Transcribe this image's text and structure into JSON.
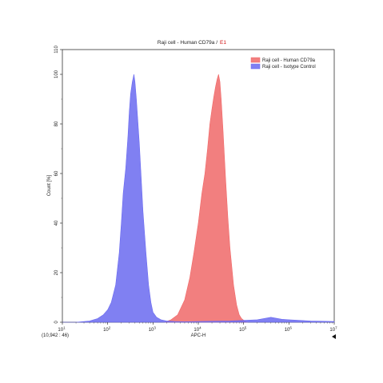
{
  "chart_data": {
    "type": "area",
    "title_main": "Raji cell - Human CD79a /",
    "title_suffix": "E1",
    "xlabel": "APC-H",
    "ylabel": "Count [%]",
    "x_scale": "log",
    "xlim": [
      10,
      10000000
    ],
    "ylim": [
      0,
      110
    ],
    "x_ticks": [
      {
        "base": "10",
        "exp": "1"
      },
      {
        "base": "10",
        "exp": "2"
      },
      {
        "base": "10",
        "exp": "3"
      },
      {
        "base": "10",
        "exp": "4"
      },
      {
        "base": "10",
        "exp": "5"
      },
      {
        "base": "10",
        "exp": "6"
      },
      {
        "base": "10",
        "exp": "7"
      }
    ],
    "y_ticks": [
      "0",
      "20",
      "40",
      "60",
      "80",
      "100",
      "110"
    ],
    "y_tick_values": [
      0,
      20,
      40,
      60,
      80,
      100,
      110
    ],
    "legend_position": "top-right",
    "readout": "(10,942 : 46)",
    "series": [
      {
        "name": "Raji cell - Human CD79a",
        "color": "#f06868",
        "fill_opacity": 0.85,
        "x": [
          1800,
          2500,
          3500,
          5000,
          6500,
          8000,
          10000,
          12000,
          14000,
          16000,
          18000,
          20000,
          22000,
          24000,
          26000,
          28000,
          30000,
          32000,
          35000,
          40000,
          45000,
          50000,
          60000,
          70000,
          80000,
          90000,
          100000,
          120000
        ],
        "y": [
          0,
          1,
          3,
          9,
          18,
          28,
          40,
          52,
          60,
          70,
          80,
          86,
          91,
          95,
          98,
          100,
          97,
          90,
          78,
          58,
          42,
          30,
          15,
          7,
          3,
          1.5,
          0.8,
          0
        ]
      },
      {
        "name": "Raji cell - Isotype Control",
        "color": "#6a6af0",
        "fill_opacity": 0.85,
        "x": [
          10,
          20,
          40,
          60,
          80,
          100,
          120,
          150,
          180,
          200,
          220,
          250,
          280,
          300,
          320,
          350,
          380,
          400,
          430,
          460,
          500,
          550,
          600,
          700,
          800,
          900,
          1000,
          1200,
          1500,
          2000,
          3000,
          5000,
          10000,
          50000,
          200000,
          400000,
          700000,
          1000000,
          3000000,
          10000000
        ],
        "y": [
          0,
          0,
          0.5,
          1.5,
          3,
          5,
          8,
          15,
          28,
          40,
          52,
          62,
          75,
          85,
          92,
          97,
          100,
          97,
          90,
          82,
          72,
          58,
          45,
          28,
          15,
          8,
          4,
          2,
          1,
          0.5,
          0.3,
          0.2,
          0.3,
          0.5,
          1,
          2,
          1.2,
          1,
          0.5,
          0.3
        ]
      }
    ]
  }
}
